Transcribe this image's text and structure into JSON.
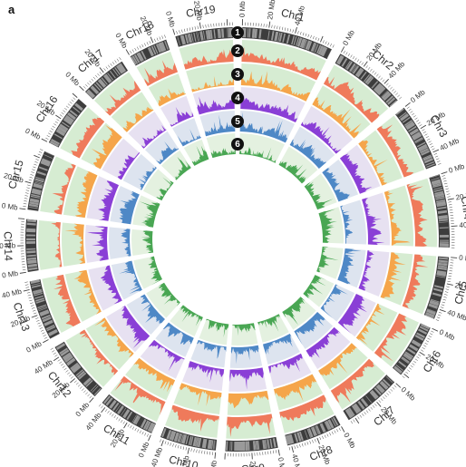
{
  "panel_label": "a",
  "colors": {
    "ideogram": "#3d3d3d",
    "ideogram_band": "#9a9a9a",
    "track_bg_green": "#d6ecd2",
    "track_bg_purple": "#e7e1f1",
    "track_bg_blue": "#dde4ef",
    "track_bg_green_inner": "#e4f1e0",
    "track2": "#ef7a5b",
    "track3": "#f5a54a",
    "track4": "#8a3fd6",
    "track5": "#4e88c6",
    "track6": "#49a653"
  },
  "track_numbers": [
    "1",
    "2",
    "3",
    "4",
    "5",
    "6"
  ],
  "tick_unit": "Mb",
  "chart_data": {
    "type": "circos",
    "chromosomes": [
      {
        "name": "Chr1",
        "length_mb": 70,
        "ticks": [
          "0 Mb",
          "20 Mb",
          "40 Mb"
        ]
      },
      {
        "name": "Chr2",
        "length_mb": 56,
        "ticks": [
          "0 Mb",
          "20 Mb",
          "40 Mb"
        ]
      },
      {
        "name": "Chr3",
        "length_mb": 50,
        "ticks": [
          "0 Mb",
          "20 Mb",
          "40 Mb"
        ]
      },
      {
        "name": "Chr4",
        "length_mb": 56,
        "ticks": [
          "0 Mb",
          "20 Mb",
          "40 Mb"
        ]
      },
      {
        "name": "Chr5",
        "length_mb": 48,
        "ticks": [
          "0 Mb",
          "20 Mb",
          "40 Mb"
        ]
      },
      {
        "name": "Chr6",
        "length_mb": 42,
        "ticks": [
          "0 Mb",
          "20 Mb"
        ]
      },
      {
        "name": "Chr7",
        "length_mb": 45,
        "ticks": [
          "0 Mb",
          "20 Mb"
        ]
      },
      {
        "name": "Chr8",
        "length_mb": 43,
        "ticks": [
          "0 Mb",
          "20 Mb",
          "40 Mb"
        ]
      },
      {
        "name": "Chr9",
        "length_mb": 40,
        "ticks": [
          "0 Mb",
          "20 Mb"
        ]
      },
      {
        "name": "Chr10",
        "length_mb": 43,
        "ticks": [
          "0 Mb",
          "20 Mb",
          "40 Mb"
        ]
      },
      {
        "name": "Chr11",
        "length_mb": 44,
        "ticks": [
          "0 Mb",
          "20 Mb",
          "40 Mb"
        ]
      },
      {
        "name": "Chr12",
        "length_mb": 48,
        "ticks": [
          "0 Mb",
          "20 Mb",
          "40 Mb"
        ]
      },
      {
        "name": "Chr13",
        "length_mb": 46,
        "ticks": [
          "0 Mb",
          "20 Mb",
          "40 Mb"
        ]
      },
      {
        "name": "Chr14",
        "length_mb": 40,
        "ticks": [
          "0 Mb",
          "20 Mb"
        ]
      },
      {
        "name": "Chr15",
        "length_mb": 46,
        "ticks": [
          "0 Mb",
          "20 Mb"
        ]
      },
      {
        "name": "Chr16",
        "length_mb": 40,
        "ticks": [
          "0 Mb",
          "20 Mb"
        ]
      },
      {
        "name": "Chr17",
        "length_mb": 36,
        "ticks": [
          "0 Mb",
          "20 Mb"
        ]
      },
      {
        "name": "Chr18",
        "length_mb": 30,
        "ticks": [
          "0 Mb",
          "20 Mb"
        ]
      },
      {
        "name": "Chr19",
        "length_mb": 44,
        "ticks": [
          "0 Mb",
          "20 Mb"
        ]
      }
    ],
    "tracks": [
      {
        "number": "1",
        "kind": "ideogram"
      },
      {
        "number": "2",
        "kind": "area"
      },
      {
        "number": "3",
        "kind": "area"
      },
      {
        "number": "4",
        "kind": "area"
      },
      {
        "number": "5",
        "kind": "area"
      },
      {
        "number": "6",
        "kind": "area"
      }
    ]
  }
}
